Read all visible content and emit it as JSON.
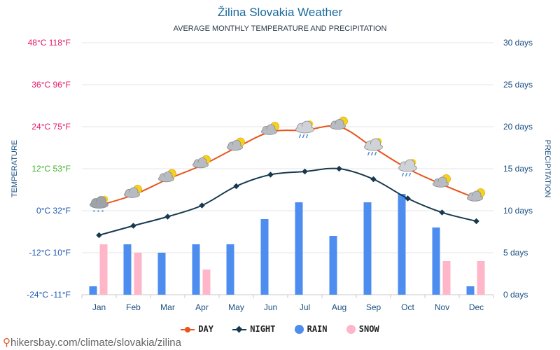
{
  "title": "Žilina Slovakia Weather",
  "subtitle": "AVERAGE MONTHLY TEMPERATURE AND PRECIPITATION",
  "source": "hikersbay.com/climate/slovakia/zilina",
  "colors": {
    "day": "#e8541c",
    "night": "#17394f",
    "rain": "#4e8df0",
    "snow": "#ffb6c8"
  },
  "legend": {
    "day": "DAY",
    "night": "NIGHT",
    "rain": "RAIN",
    "snow": "SNOW"
  },
  "chart_data": {
    "type": "line",
    "categories": [
      "Jan",
      "Feb",
      "Mar",
      "Apr",
      "May",
      "Jun",
      "Jul",
      "Aug",
      "Sep",
      "Oct",
      "Nov",
      "Dec"
    ],
    "left_axis": {
      "label": "TEMPERATURE",
      "range": [
        -24,
        48
      ],
      "ticks": [
        {
          "value": 48,
          "label": "48°C 118°F",
          "color": "#e8166a"
        },
        {
          "value": 36,
          "label": "36°C 96°F",
          "color": "#e8166a"
        },
        {
          "value": 24,
          "label": "24°C 75°F",
          "color": "#e8166a"
        },
        {
          "value": 12,
          "label": "12°C 53°F",
          "color": "#43b02a"
        },
        {
          "value": 0,
          "label": "0°C 32°F",
          "color": "#1a55b0"
        },
        {
          "value": -12,
          "label": "-12°C 10°F",
          "color": "#1a55b0"
        },
        {
          "value": -24,
          "label": "-24°C -11°F",
          "color": "#1a55b0"
        }
      ]
    },
    "right_axis": {
      "label": "PRECIPITATION",
      "range": [
        0,
        30
      ],
      "ticks": [
        "0 days",
        "5 days",
        "10 days",
        "15 days",
        "20 days",
        "25 days",
        "30 days"
      ]
    },
    "series": [
      {
        "name": "DAY",
        "kind": "line",
        "values": [
          1.5,
          4.5,
          9,
          13,
          18,
          22.5,
          23,
          24,
          18,
          12,
          7.5,
          3.5
        ]
      },
      {
        "name": "NIGHT",
        "kind": "line",
        "values": [
          -7,
          -4.3,
          -1.7,
          1.5,
          7,
          10.3,
          11.2,
          12,
          9,
          3.5,
          -0.5,
          -3
        ]
      },
      {
        "name": "RAIN",
        "kind": "bar",
        "values": [
          1,
          6,
          5,
          6,
          6,
          9,
          11,
          7,
          11,
          12,
          8,
          1
        ]
      },
      {
        "name": "SNOW",
        "kind": "bar",
        "values": [
          6,
          5,
          0,
          3,
          0,
          0,
          0,
          0,
          0,
          0,
          4,
          4
        ]
      }
    ],
    "weather_icons": [
      "snow-cloud",
      "partly-sunny",
      "partly-sunny",
      "partly-sunny",
      "partly-sunny",
      "partly-sunny",
      "rain-cloud",
      "partly-sunny",
      "rain-cloud",
      "rain-cloud",
      "partly-sunny",
      "partly-sunny"
    ],
    "grid": true
  }
}
